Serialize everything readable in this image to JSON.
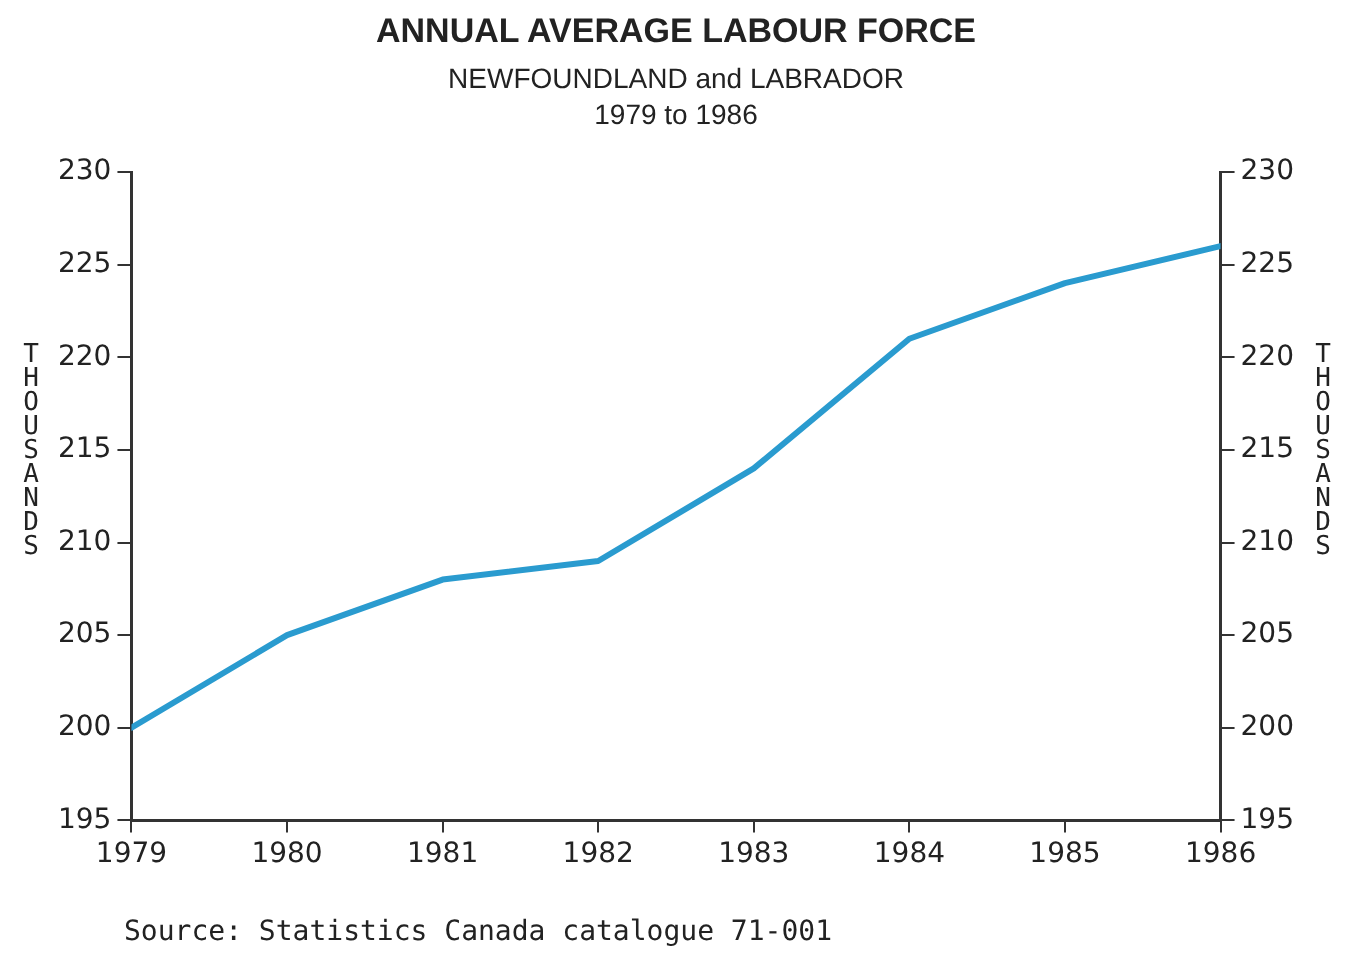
{
  "chart_data": {
    "type": "line",
    "title": "ANNUAL AVERAGE LABOUR FORCE",
    "subtitle": "NEWFOUNDLAND and LABRADOR\n1979 to 1986",
    "ylabel": "THOUSANDS",
    "y2label": "THOUSANDS",
    "x": [
      1979,
      1980,
      1981,
      1982,
      1983,
      1984,
      1985,
      1986
    ],
    "series": [
      {
        "color": "#2a9bcf",
        "values": [
          200,
          205,
          208,
          209,
          214,
          221,
          224,
          226
        ]
      }
    ],
    "xlim": [
      1979,
      1986
    ],
    "xticks": [
      1979,
      1980,
      1981,
      1982,
      1983,
      1984,
      1985,
      1986
    ],
    "ylim": [
      195,
      230
    ],
    "yticks": [
      195,
      200,
      205,
      210,
      215,
      220,
      225,
      230
    ],
    "y2lim": [
      195,
      230
    ],
    "y2ticks": [
      195,
      200,
      205,
      210,
      215,
      220,
      225,
      230
    ],
    "grid": false,
    "legend": false,
    "marker": "none",
    "line_style": "solid",
    "annotations": [
      "Source: Statistics Canada catalogue 71-001"
    ]
  }
}
